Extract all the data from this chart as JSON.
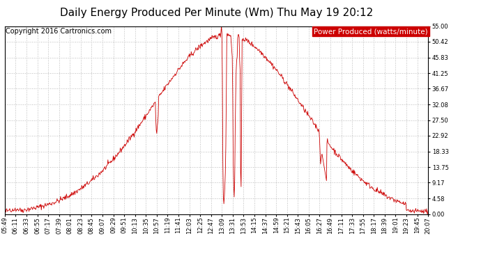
{
  "title": "Daily Energy Produced Per Minute (Wm) Thu May 19 20:12",
  "copyright": "Copyright 2016 Cartronics.com",
  "legend_label": "Power Produced (watts/minute)",
  "legend_bg": "#cc0000",
  "legend_fg": "#ffffff",
  "line_color": "#cc0000",
  "background_color": "#ffffff",
  "grid_color": "#bbbbbb",
  "ylim": [
    0.0,
    55.0
  ],
  "yticks": [
    0.0,
    4.58,
    9.17,
    13.75,
    18.33,
    22.92,
    27.5,
    32.08,
    36.67,
    41.25,
    45.83,
    50.42,
    55.0
  ],
  "xtick_labels": [
    "05:49",
    "06:11",
    "06:33",
    "06:55",
    "07:17",
    "07:39",
    "08:01",
    "08:23",
    "08:45",
    "09:07",
    "09:29",
    "09:51",
    "10:13",
    "10:35",
    "10:57",
    "11:19",
    "11:41",
    "12:03",
    "12:25",
    "12:47",
    "13:09",
    "13:31",
    "13:53",
    "14:15",
    "14:37",
    "14:59",
    "15:21",
    "15:43",
    "16:05",
    "16:27",
    "16:49",
    "17:11",
    "17:33",
    "17:55",
    "18:17",
    "18:39",
    "19:01",
    "19:23",
    "19:45",
    "20:07"
  ],
  "title_fontsize": 11,
  "copyright_fontsize": 7,
  "legend_fontsize": 7.5,
  "tick_fontsize": 6
}
